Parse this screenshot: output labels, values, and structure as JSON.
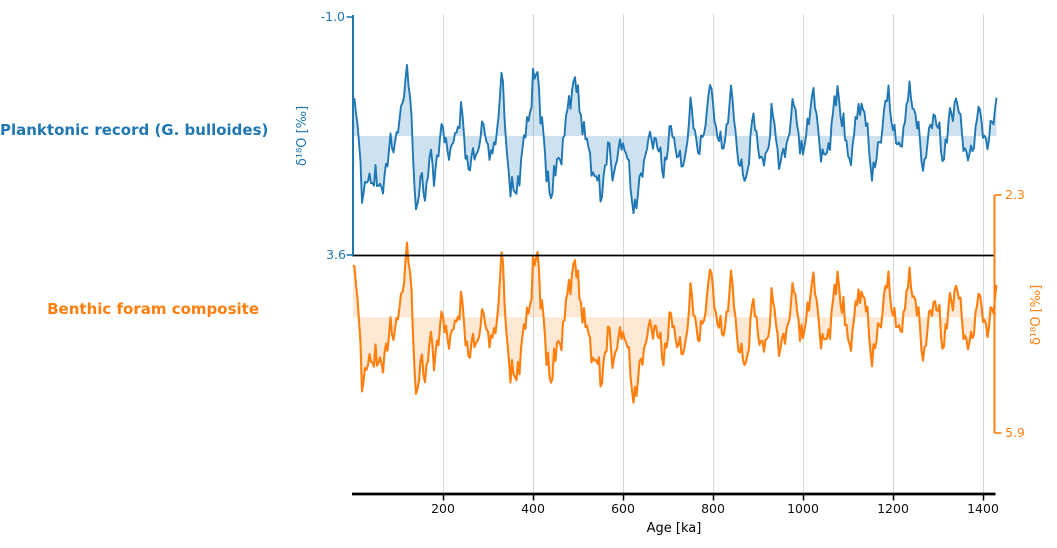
{
  "figure": {
    "background": "#ffffff",
    "grid_color": "#d9d9d9",
    "separator_line_color": "#000000",
    "bottom_axis_color": "#000000"
  },
  "chart_data": {
    "type": "line",
    "title": "",
    "xlabel": "Age [ka]",
    "x_range_ka": [
      0,
      1430
    ],
    "x_ticks": [
      200,
      400,
      600,
      800,
      1000,
      1200,
      1400
    ],
    "grid": true,
    "legend_position": "left-margin-titles",
    "render_subdivisions": 3,
    "axes": {
      "left": {
        "color": "#1f77b4",
        "tick_labels": [
          "-1.0",
          "3.6"
        ],
        "ylim": [
          -1.0,
          3.6
        ],
        "direction": "increasing downward"
      },
      "right": {
        "color": "#ff7f0e",
        "tick_labels": [
          "2.3",
          "5.9"
        ],
        "ylim": [
          2.3,
          5.9
        ],
        "direction": "increasing downward"
      }
    },
    "series": [
      {
        "name": "Planktonic record (G. bulloides)",
        "ylabel": "δ¹⁸O [‰]",
        "axis": "left",
        "color": "#1f77b4",
        "fill_opacity": 0.22,
        "line_width": 1.9,
        "ylim": [
          -1.0,
          3.6
        ],
        "baseline_mean": 1.3,
        "x_start_ka": 0,
        "x_step_ka": 10,
        "render_noise": {
          "a1": 0.14,
          "a2": 0.1,
          "a3": 0.07,
          "a4": 0.1
        },
        "values": [
          0.45,
          1.0,
          2.4,
          2.1,
          2.3,
          1.9,
          2.5,
          2.0,
          1.6,
          1.4,
          1.2,
          0.7,
          -0.1,
          1.1,
          2.7,
          2.2,
          2.4,
          1.8,
          2.1,
          1.5,
          1.2,
          1.5,
          1.7,
          1.1,
          0.8,
          1.6,
          1.9,
          1.7,
          1.4,
          1.1,
          1.5,
          1.8,
          1.2,
          0.0,
          1.4,
          2.2,
          2.5,
          1.9,
          1.4,
          0.9,
          0.3,
          0.1,
          1.0,
          2.1,
          2.4,
          2.0,
          1.7,
          1.3,
          0.6,
          0.2,
          0.5,
          1.0,
          1.5,
          1.8,
          2.2,
          2.4,
          1.9,
          1.6,
          2.1,
          1.6,
          1.3,
          1.8,
          2.5,
          2.6,
          2.1,
          1.6,
          1.4,
          1.3,
          1.7,
          1.9,
          1.5,
          1.1,
          1.6,
          2.0,
          1.5,
          0.8,
          1.2,
          1.7,
          1.2,
          0.5,
          0.7,
          1.2,
          1.6,
          1.0,
          0.5,
          1.2,
          1.9,
          2.2,
          1.7,
          0.9,
          1.4,
          2.0,
          1.5,
          0.9,
          1.3,
          1.8,
          1.6,
          1.1,
          0.7,
          1.2,
          1.7,
          1.1,
          0.5,
          0.9,
          1.6,
          1.8,
          1.2,
          0.7,
          0.5,
          1.1,
          1.7,
          1.5,
          0.9,
          0.6,
          1.1,
          1.8,
          2.0,
          1.4,
          0.9,
          0.6,
          1.1,
          1.7,
          1.3,
          0.8,
          0.4,
          1.0,
          1.5,
          1.8,
          1.3,
          0.8,
          1.2,
          1.7,
          1.3,
          0.8,
          0.6,
          1.1,
          1.5,
          1.8,
          1.3,
          0.8,
          1.2,
          1.5,
          1.0,
          0.6
        ]
      },
      {
        "name": "Benthic foram composite",
        "ylabel": "δ¹⁸O [‰]",
        "axis": "right",
        "color": "#ff7f0e",
        "fill_opacity": 0.18,
        "line_width": 2.1,
        "ylim": [
          2.3,
          5.9
        ],
        "baseline_mean": 4.15,
        "x_start_ka": 0,
        "x_step_ka": 10,
        "render_noise": {
          "a1": 0.12,
          "a2": 0.09,
          "a3": 0.06,
          "a4": 0.09
        },
        "values": [
          3.25,
          3.8,
          5.1,
          4.85,
          4.9,
          4.6,
          5.0,
          4.65,
          4.45,
          4.3,
          4.15,
          3.8,
          3.0,
          3.9,
          5.3,
          4.9,
          5.0,
          4.6,
          4.8,
          4.4,
          4.2,
          4.4,
          4.55,
          4.1,
          3.9,
          4.45,
          4.7,
          4.55,
          4.35,
          4.1,
          4.4,
          4.6,
          4.2,
          3.1,
          4.3,
          4.9,
          5.15,
          4.7,
          4.35,
          4.0,
          3.5,
          3.2,
          3.95,
          4.8,
          5.05,
          4.75,
          4.5,
          4.2,
          3.65,
          3.3,
          3.6,
          4.0,
          4.4,
          4.6,
          4.9,
          5.05,
          4.7,
          4.45,
          4.85,
          4.5,
          4.25,
          4.65,
          5.2,
          5.25,
          4.85,
          4.5,
          4.35,
          4.25,
          4.55,
          4.7,
          4.4,
          4.1,
          4.5,
          4.8,
          4.4,
          3.85,
          4.15,
          4.55,
          4.15,
          3.6,
          3.75,
          4.15,
          4.45,
          4.0,
          3.6,
          4.15,
          4.7,
          4.9,
          4.5,
          3.9,
          4.3,
          4.75,
          4.4,
          3.9,
          4.2,
          4.6,
          4.45,
          4.05,
          3.75,
          4.15,
          4.5,
          4.05,
          3.6,
          3.9,
          4.45,
          4.6,
          4.15,
          3.8,
          3.6,
          4.05,
          4.5,
          4.35,
          3.9,
          3.7,
          4.05,
          4.6,
          4.7,
          4.25,
          3.9,
          3.7,
          4.05,
          4.5,
          4.2,
          3.85,
          3.55,
          4.0,
          4.4,
          4.65,
          4.2,
          3.85,
          4.1,
          4.55,
          4.2,
          3.85,
          3.7,
          4.05,
          4.4,
          4.65,
          4.2,
          3.85,
          4.1,
          4.4,
          4.0,
          3.7
        ]
      }
    ]
  }
}
